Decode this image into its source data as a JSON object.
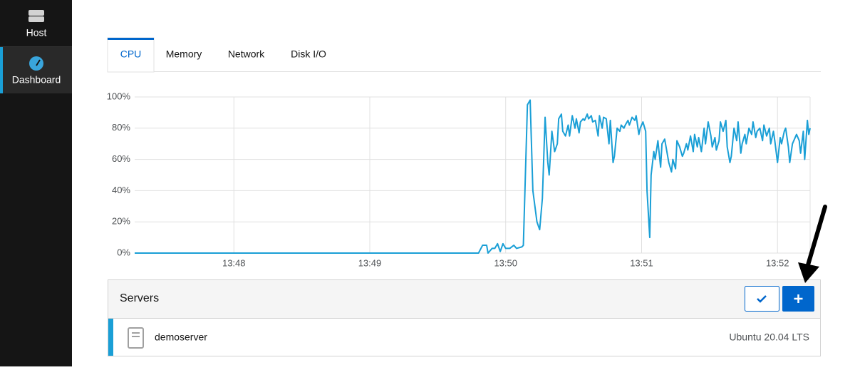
{
  "sidebar": {
    "items": [
      {
        "label": "Host"
      },
      {
        "label": "Dashboard"
      }
    ]
  },
  "tabs": [
    "CPU",
    "Memory",
    "Network",
    "Disk I/O"
  ],
  "chart_data": {
    "type": "line",
    "color": "#1a9fd6",
    "grid": true,
    "x": [
      827.27,
      829.8,
      829.83,
      829.86,
      829.87,
      829.9,
      829.92,
      829.94,
      829.96,
      829.98,
      830.0,
      830.03,
      830.06,
      830.08,
      830.12,
      830.13,
      830.16,
      830.18,
      830.2,
      830.23,
      830.25,
      830.27,
      830.29,
      830.31,
      830.32,
      830.34,
      830.36,
      830.38,
      830.39,
      830.41,
      830.42,
      830.44,
      830.46,
      830.47,
      830.49,
      830.51,
      830.52,
      830.54,
      830.55,
      830.57,
      830.58,
      830.6,
      830.61,
      830.63,
      830.64,
      830.66,
      830.68,
      830.69,
      830.71,
      830.72,
      830.74,
      830.76,
      830.77,
      830.79,
      830.8,
      830.82,
      830.84,
      830.85,
      830.87,
      830.88,
      830.9,
      830.91,
      830.93,
      830.95,
      830.96,
      830.98,
      830.99,
      831.01,
      831.03,
      831.04,
      831.06,
      831.07,
      831.09,
      831.1,
      831.12,
      831.14,
      831.15,
      831.17,
      831.18,
      831.2,
      831.22,
      831.23,
      831.25,
      831.26,
      831.28,
      831.3,
      831.31,
      831.33,
      831.34,
      831.36,
      831.38,
      831.39,
      831.41,
      831.42,
      831.44,
      831.46,
      831.47,
      831.49,
      831.51,
      831.52,
      831.54,
      831.55,
      831.57,
      831.58,
      831.6,
      831.62,
      831.63,
      831.65,
      831.66,
      831.68,
      831.7,
      831.71,
      831.73,
      831.74,
      831.76,
      831.77,
      831.79,
      831.81,
      831.82,
      831.84,
      831.85,
      831.87,
      831.89,
      831.9,
      831.92,
      831.94,
      831.95,
      831.97,
      831.98,
      832.0,
      832.02,
      832.03,
      832.05,
      832.06,
      832.08,
      832.09,
      832.11,
      832.13,
      832.14,
      832.16,
      832.17,
      832.19,
      832.2,
      832.22,
      832.23,
      832.24
    ],
    "values": [
      0,
      0,
      5,
      5,
      0,
      3,
      3,
      6,
      1,
      6,
      3,
      3,
      5,
      3,
      4,
      5,
      95,
      98,
      40,
      20,
      15,
      35,
      87,
      58,
      50,
      78,
      65,
      70,
      86,
      89,
      78,
      75,
      82,
      75,
      88,
      80,
      86,
      77,
      84,
      86,
      85,
      89,
      86,
      88,
      84,
      85,
      75,
      88,
      80,
      87,
      86,
      70,
      85,
      58,
      62,
      80,
      78,
      82,
      80,
      82,
      85,
      82,
      87,
      85,
      88,
      76,
      80,
      84,
      78,
      40,
      10,
      50,
      65,
      60,
      72,
      55,
      70,
      73,
      68,
      58,
      52,
      60,
      54,
      72,
      68,
      62,
      64,
      70,
      66,
      75,
      65,
      76,
      68,
      74,
      65,
      80,
      70,
      84,
      75,
      68,
      74,
      66,
      72,
      84,
      78,
      85,
      68,
      58,
      62,
      80,
      72,
      84,
      64,
      70,
      76,
      70,
      80,
      76,
      84,
      74,
      78,
      80,
      72,
      82,
      75,
      80,
      70,
      78,
      72,
      58,
      74,
      70,
      78,
      80,
      68,
      58,
      70,
      74,
      76,
      72,
      64,
      78,
      60,
      85,
      76,
      80
    ],
    "xlim": [
      827.27,
      832.24
    ],
    "xticks": [
      {
        "value": 828,
        "label": "13:48"
      },
      {
        "value": 829,
        "label": "13:49"
      },
      {
        "value": 830,
        "label": "13:50"
      },
      {
        "value": 831,
        "label": "13:51"
      },
      {
        "value": 832,
        "label": "13:52"
      }
    ],
    "ylim": [
      0,
      100
    ],
    "yticks": [
      {
        "value": 0,
        "label": "0%"
      },
      {
        "value": 20,
        "label": "20%"
      },
      {
        "value": 40,
        "label": "40%"
      },
      {
        "value": 60,
        "label": "60%"
      },
      {
        "value": 80,
        "label": "80%"
      },
      {
        "value": 100,
        "label": "100%"
      }
    ]
  },
  "servers": {
    "title": "Servers",
    "rows": [
      {
        "name": "demoserver",
        "os": "Ubuntu 20.04 LTS"
      }
    ]
  }
}
